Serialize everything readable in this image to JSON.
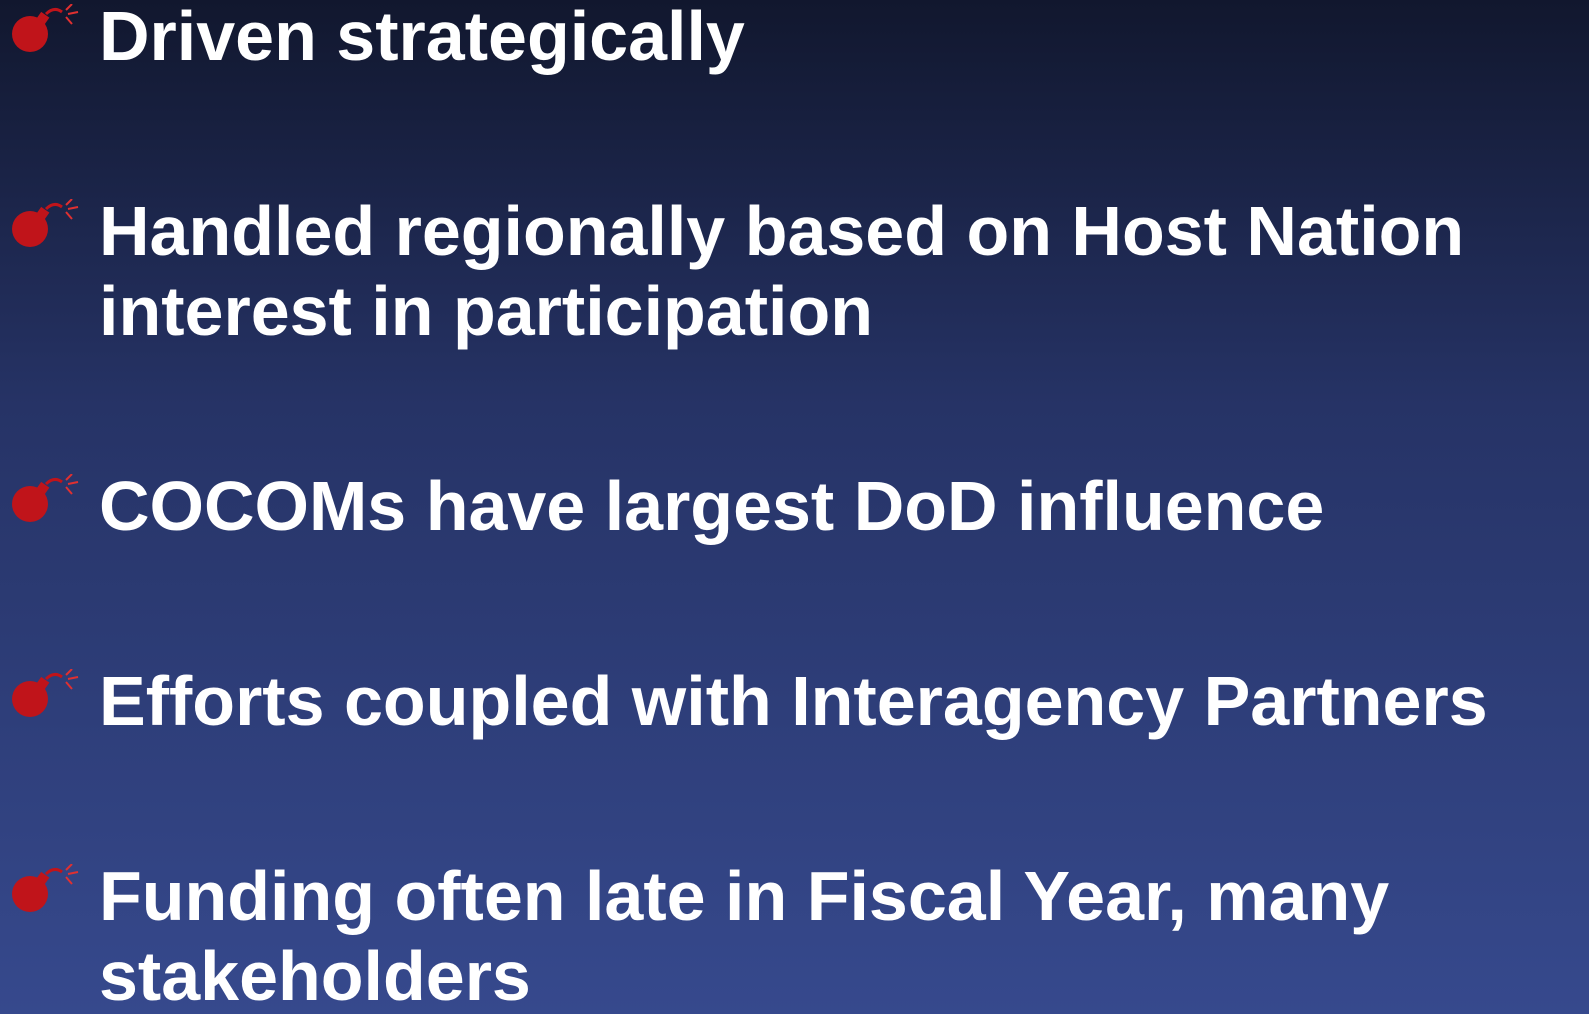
{
  "bullets": [
    "Driven strategically",
    "Handled regionally based on Host Nation interest in participation",
    "COCOMs have largest DoD influence",
    "Efforts coupled with Interagency Partners",
    "Funding often late in Fiscal Year, many stakeholders"
  ]
}
